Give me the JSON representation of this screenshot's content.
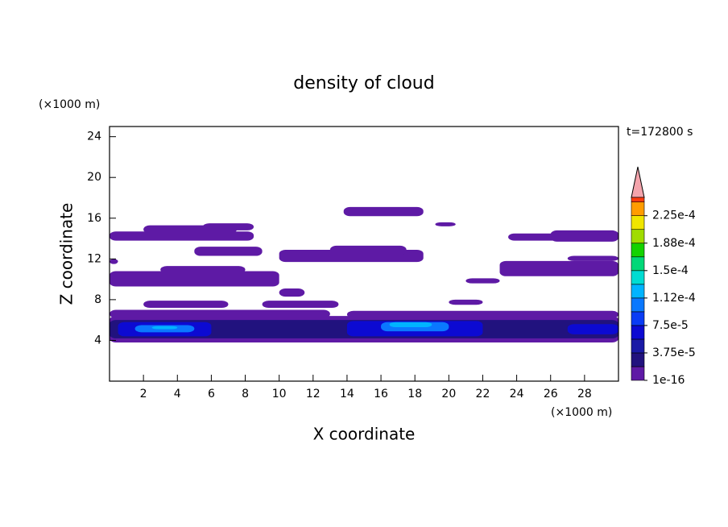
{
  "chart_data": {
    "type": "contour",
    "title": "density of cloud",
    "xlabel": "X coordinate",
    "ylabel": "Z coordinate",
    "xunit": "(×1000 m)",
    "yunit": "(×1000 m)",
    "time_label": "t=172800 s",
    "xlim": [
      0,
      30
    ],
    "ylim": [
      0,
      25
    ],
    "xticks": [
      2,
      4,
      6,
      8,
      10,
      12,
      14,
      16,
      18,
      20,
      22,
      24,
      26,
      28
    ],
    "yticks": [
      4,
      8,
      12,
      16,
      20,
      24
    ],
    "clim": [
      1e-16,
      0.00025
    ],
    "levels": [
      1e-16,
      1.875e-05,
      3.75e-05,
      5.625e-05,
      7.5e-05,
      9.375e-05,
      0.0001125,
      0.00013125,
      0.00015,
      0.00016875,
      0.0001875,
      0.00020625,
      0.000225,
      0.00024375
    ],
    "colors": [
      "#5e1aa5",
      "#21127e",
      "#1a1aa6",
      "#0c0ad2",
      "#0a3cf5",
      "#0a78ff",
      "#00b4ff",
      "#00dcd2",
      "#00d878",
      "#14d200",
      "#a0dc00",
      "#f0e600",
      "#ff9c00",
      "#ff3c10"
    ],
    "cticks": [
      1e-16,
      {
        "value": 3.75e-05,
        "label": "3.75e-5"
      },
      {
        "value": 7.5e-05,
        "label": "7.5e-5"
      },
      {
        "value": 0.0001125,
        "label": "1.12e-4"
      },
      {
        "value": 0.00015,
        "label": "1.5e-4"
      },
      {
        "value": 0.0001875,
        "label": "1.88e-4"
      },
      {
        "value": 0.000225,
        "label": "2.25e-4"
      }
    ],
    "patches": [
      {
        "x": [
          0,
          30
        ],
        "z": [
          3.8,
          6.4
        ],
        "value": 1e-16
      },
      {
        "x": [
          0,
          13
        ],
        "z": [
          6.2,
          7.0
        ],
        "value": 1e-16
      },
      {
        "x": [
          14,
          30
        ],
        "z": [
          6.2,
          6.9
        ],
        "value": 1e-16
      },
      {
        "x": [
          0,
          30
        ],
        "z": [
          4.2,
          6.0
        ],
        "value": 1.875e-05
      },
      {
        "x": [
          0.5,
          6
        ],
        "z": [
          4.4,
          5.8
        ],
        "value": 5.625e-05
      },
      {
        "x": [
          14,
          22
        ],
        "z": [
          4.4,
          5.9
        ],
        "value": 5.625e-05
      },
      {
        "x": [
          27,
          30
        ],
        "z": [
          4.6,
          5.6
        ],
        "value": 5.625e-05
      },
      {
        "x": [
          1.5,
          5
        ],
        "z": [
          4.8,
          5.5
        ],
        "value": 9.375e-05
      },
      {
        "x": [
          16,
          20
        ],
        "z": [
          4.9,
          5.8
        ],
        "value": 9.375e-05
      },
      {
        "x": [
          2.5,
          4
        ],
        "z": [
          5.1,
          5.4
        ],
        "value": 0.0001125
      },
      {
        "x": [
          16.5,
          19
        ],
        "z": [
          5.3,
          5.8
        ],
        "value": 0.0001125
      },
      {
        "x": [
          0,
          8.5
        ],
        "z": [
          13.8,
          14.7
        ],
        "value": 1e-16
      },
      {
        "x": [
          2,
          7.5
        ],
        "z": [
          14.5,
          15.3
        ],
        "value": 1e-16
      },
      {
        "x": [
          5.5,
          8.5
        ],
        "z": [
          14.8,
          15.5
        ],
        "value": 1e-16
      },
      {
        "x": [
          13.8,
          18.5
        ],
        "z": [
          16.2,
          17.1
        ],
        "value": 1e-16
      },
      {
        "x": [
          19.2,
          20.4
        ],
        "z": [
          15.2,
          15.6
        ],
        "value": 1e-16
      },
      {
        "x": [
          26,
          30
        ],
        "z": [
          13.7,
          14.8
        ],
        "value": 1e-16
      },
      {
        "x": [
          23.5,
          26.5
        ],
        "z": [
          13.8,
          14.5
        ],
        "value": 1e-16
      },
      {
        "x": [
          5,
          9
        ],
        "z": [
          12.3,
          13.2
        ],
        "value": 1e-16
      },
      {
        "x": [
          10,
          18.5
        ],
        "z": [
          11.7,
          12.9
        ],
        "value": 1e-16
      },
      {
        "x": [
          13,
          17.5
        ],
        "z": [
          12.4,
          13.3
        ],
        "value": 1e-16
      },
      {
        "x": [
          0,
          0.5
        ],
        "z": [
          11.5,
          12
        ],
        "value": 1e-16
      },
      {
        "x": [
          23,
          30
        ],
        "z": [
          10.3,
          11.8
        ],
        "value": 1e-16
      },
      {
        "x": [
          27,
          30
        ],
        "z": [
          11.8,
          12.3
        ],
        "value": 1e-16
      },
      {
        "x": [
          0,
          10
        ],
        "z": [
          9.3,
          10.8
        ],
        "value": 1e-16
      },
      {
        "x": [
          3,
          8
        ],
        "z": [
          10.6,
          11.3
        ],
        "value": 1e-16
      },
      {
        "x": [
          10,
          11.5
        ],
        "z": [
          8.3,
          9.1
        ],
        "value": 1e-16
      },
      {
        "x": [
          21,
          23
        ],
        "z": [
          9.6,
          10.1
        ],
        "value": 1e-16
      },
      {
        "x": [
          2,
          7
        ],
        "z": [
          7.2,
          7.9
        ],
        "value": 1e-16
      },
      {
        "x": [
          9,
          13.5
        ],
        "z": [
          7.2,
          7.9
        ],
        "value": 1e-16
      },
      {
        "x": [
          20,
          22
        ],
        "z": [
          7.5,
          8
        ],
        "value": 1e-16
      }
    ]
  }
}
